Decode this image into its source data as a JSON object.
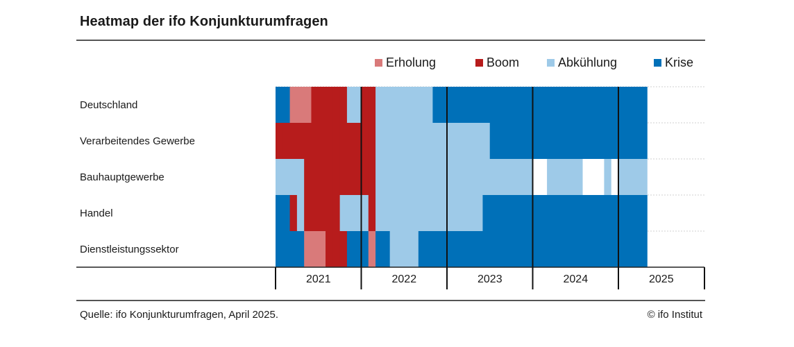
{
  "title": "Heatmap der ifo Konjunkturumfragen",
  "source": "Quelle: ifo Konjunkturumfragen, April 2025.",
  "copyright": "© ifo Institut",
  "colors": {
    "Erholung": "#d97a7a",
    "Boom": "#b71c1c",
    "Abkühlung": "#9ecae8",
    "Krise": "#0070b8",
    "gap": "#ffffff"
  },
  "chart_data": {
    "type": "heatmap",
    "title": "Heatmap der ifo Konjunkturumfragen",
    "legend": [
      "Erholung",
      "Boom",
      "Abkühlung",
      "Krise"
    ],
    "legend_position": "top-right",
    "rows": [
      "Deutschland",
      "Verarbeitendes Gewerbe",
      "Bauhauptgewerbe",
      "Handel",
      "Dienstleistungssektor"
    ],
    "x_labels": [
      "2021",
      "2022",
      "2023",
      "2024",
      "2025"
    ],
    "x_range": [
      "2021-01",
      "2025-04"
    ],
    "periods": [
      "2021-01",
      "2021-02",
      "2021-03",
      "2021-04",
      "2021-05",
      "2021-06",
      "2021-07",
      "2021-08",
      "2021-09",
      "2021-10",
      "2021-11",
      "2021-12",
      "2022-01",
      "2022-02",
      "2022-03",
      "2022-04",
      "2022-05",
      "2022-06",
      "2022-07",
      "2022-08",
      "2022-09",
      "2022-10",
      "2022-11",
      "2022-12",
      "2023-01",
      "2023-02",
      "2023-03",
      "2023-04",
      "2023-05",
      "2023-06",
      "2023-07",
      "2023-08",
      "2023-09",
      "2023-10",
      "2023-11",
      "2023-12",
      "2024-01",
      "2024-02",
      "2024-03",
      "2024-04",
      "2024-05",
      "2024-06",
      "2024-07",
      "2024-08",
      "2024-09",
      "2024-10",
      "2024-11",
      "2024-12",
      "2025-01",
      "2025-02",
      "2025-03",
      "2025-04"
    ],
    "series": [
      {
        "name": "Deutschland",
        "values": [
          "Krise",
          "Krise",
          "Erholung",
          "Erholung",
          "Erholung",
          "Boom",
          "Boom",
          "Boom",
          "Boom",
          "Boom",
          "Abkühlung",
          "Abkühlung",
          "Boom",
          "Boom",
          "Abkühlung",
          "Abkühlung",
          "Abkühlung",
          "Abkühlung",
          "Abkühlung",
          "Abkühlung",
          "Abkühlung",
          "Abkühlung",
          "Krise",
          "Krise",
          "Krise",
          "Krise",
          "Krise",
          "Krise",
          "Krise",
          "Krise",
          "Krise",
          "Krise",
          "Krise",
          "Krise",
          "Krise",
          "Krise",
          "Krise",
          "Krise",
          "Krise",
          "Krise",
          "Krise",
          "Krise",
          "Krise",
          "Krise",
          "Krise",
          "Krise",
          "Krise",
          "Krise",
          "Krise",
          "Krise",
          "Krise",
          "Krise"
        ]
      },
      {
        "name": "Verarbeitendes Gewerbe",
        "values": [
          "Boom",
          "Boom",
          "Boom",
          "Boom",
          "Boom",
          "Boom",
          "Boom",
          "Boom",
          "Boom",
          "Boom",
          "Boom",
          "Boom",
          "Boom",
          "Boom",
          "Abkühlung",
          "Abkühlung",
          "Abkühlung",
          "Abkühlung",
          "Abkühlung",
          "Abkühlung",
          "Abkühlung",
          "Abkühlung",
          "Abkühlung",
          "Abkühlung",
          "Abkühlung",
          "Abkühlung",
          "Abkühlung",
          "Abkühlung",
          "Abkühlung",
          "Abkühlung",
          "Krise",
          "Krise",
          "Krise",
          "Krise",
          "Krise",
          "Krise",
          "Krise",
          "Krise",
          "Krise",
          "Krise",
          "Krise",
          "Krise",
          "Krise",
          "Krise",
          "Krise",
          "Krise",
          "Krise",
          "Krise",
          "Krise",
          "Krise",
          "Krise",
          "Krise"
        ]
      },
      {
        "name": "Bauhauptgewerbe",
        "values": [
          "Abkühlung",
          "Abkühlung",
          "Abkühlung",
          "Abkühlung",
          "Boom",
          "Boom",
          "Boom",
          "Boom",
          "Boom",
          "Boom",
          "Boom",
          "Boom",
          "Boom",
          "Boom",
          "Abkühlung",
          "Abkühlung",
          "Abkühlung",
          "Abkühlung",
          "Abkühlung",
          "Abkühlung",
          "Abkühlung",
          "Abkühlung",
          "Abkühlung",
          "Abkühlung",
          "Abkühlung",
          "Abkühlung",
          "Abkühlung",
          "Abkühlung",
          "Abkühlung",
          "Abkühlung",
          "Abkühlung",
          "Abkühlung",
          "Abkühlung",
          "Abkühlung",
          "Abkühlung",
          "Abkühlung",
          "gap",
          "gap",
          "Abkühlung",
          "Abkühlung",
          "Abkühlung",
          "Abkühlung",
          "Abkühlung",
          "gap",
          "gap",
          "gap",
          "Abkühlung",
          "gap",
          "Abkühlung",
          "Abkühlung",
          "Abkühlung",
          "Abkühlung"
        ]
      },
      {
        "name": "Handel",
        "values": [
          "Krise",
          "Krise",
          "Boom",
          "Abkühlung",
          "Boom",
          "Boom",
          "Boom",
          "Boom",
          "Boom",
          "Abkühlung",
          "Abkühlung",
          "Abkühlung",
          "Abkühlung",
          "Boom",
          "Abkühlung",
          "Abkühlung",
          "Abkühlung",
          "Abkühlung",
          "Abkühlung",
          "Abkühlung",
          "Abkühlung",
          "Abkühlung",
          "Abkühlung",
          "Abkühlung",
          "Abkühlung",
          "Abkühlung",
          "Abkühlung",
          "Abkühlung",
          "Abkühlung",
          "Krise",
          "Krise",
          "Krise",
          "Krise",
          "Krise",
          "Krise",
          "Krise",
          "Krise",
          "Krise",
          "Krise",
          "Krise",
          "Krise",
          "Krise",
          "Krise",
          "Krise",
          "Krise",
          "Krise",
          "Krise",
          "Krise",
          "Krise",
          "Krise",
          "Krise",
          "Krise"
        ]
      },
      {
        "name": "Dienstleistungssektor",
        "values": [
          "Krise",
          "Krise",
          "Krise",
          "Krise",
          "Erholung",
          "Erholung",
          "Erholung",
          "Boom",
          "Boom",
          "Boom",
          "Krise",
          "Krise",
          "Krise",
          "Erholung",
          "Krise",
          "Krise",
          "Abkühlung",
          "Abkühlung",
          "Abkühlung",
          "Abkühlung",
          "Krise",
          "Krise",
          "Krise",
          "Krise",
          "Krise",
          "Krise",
          "Krise",
          "Krise",
          "Krise",
          "Krise",
          "Krise",
          "Krise",
          "Krise",
          "Krise",
          "Krise",
          "Krise",
          "Krise",
          "Krise",
          "Krise",
          "Krise",
          "Krise",
          "Krise",
          "Krise",
          "Krise",
          "Krise",
          "Krise",
          "Krise",
          "Krise",
          "Krise",
          "Krise",
          "Krise",
          "Krise"
        ]
      }
    ]
  }
}
